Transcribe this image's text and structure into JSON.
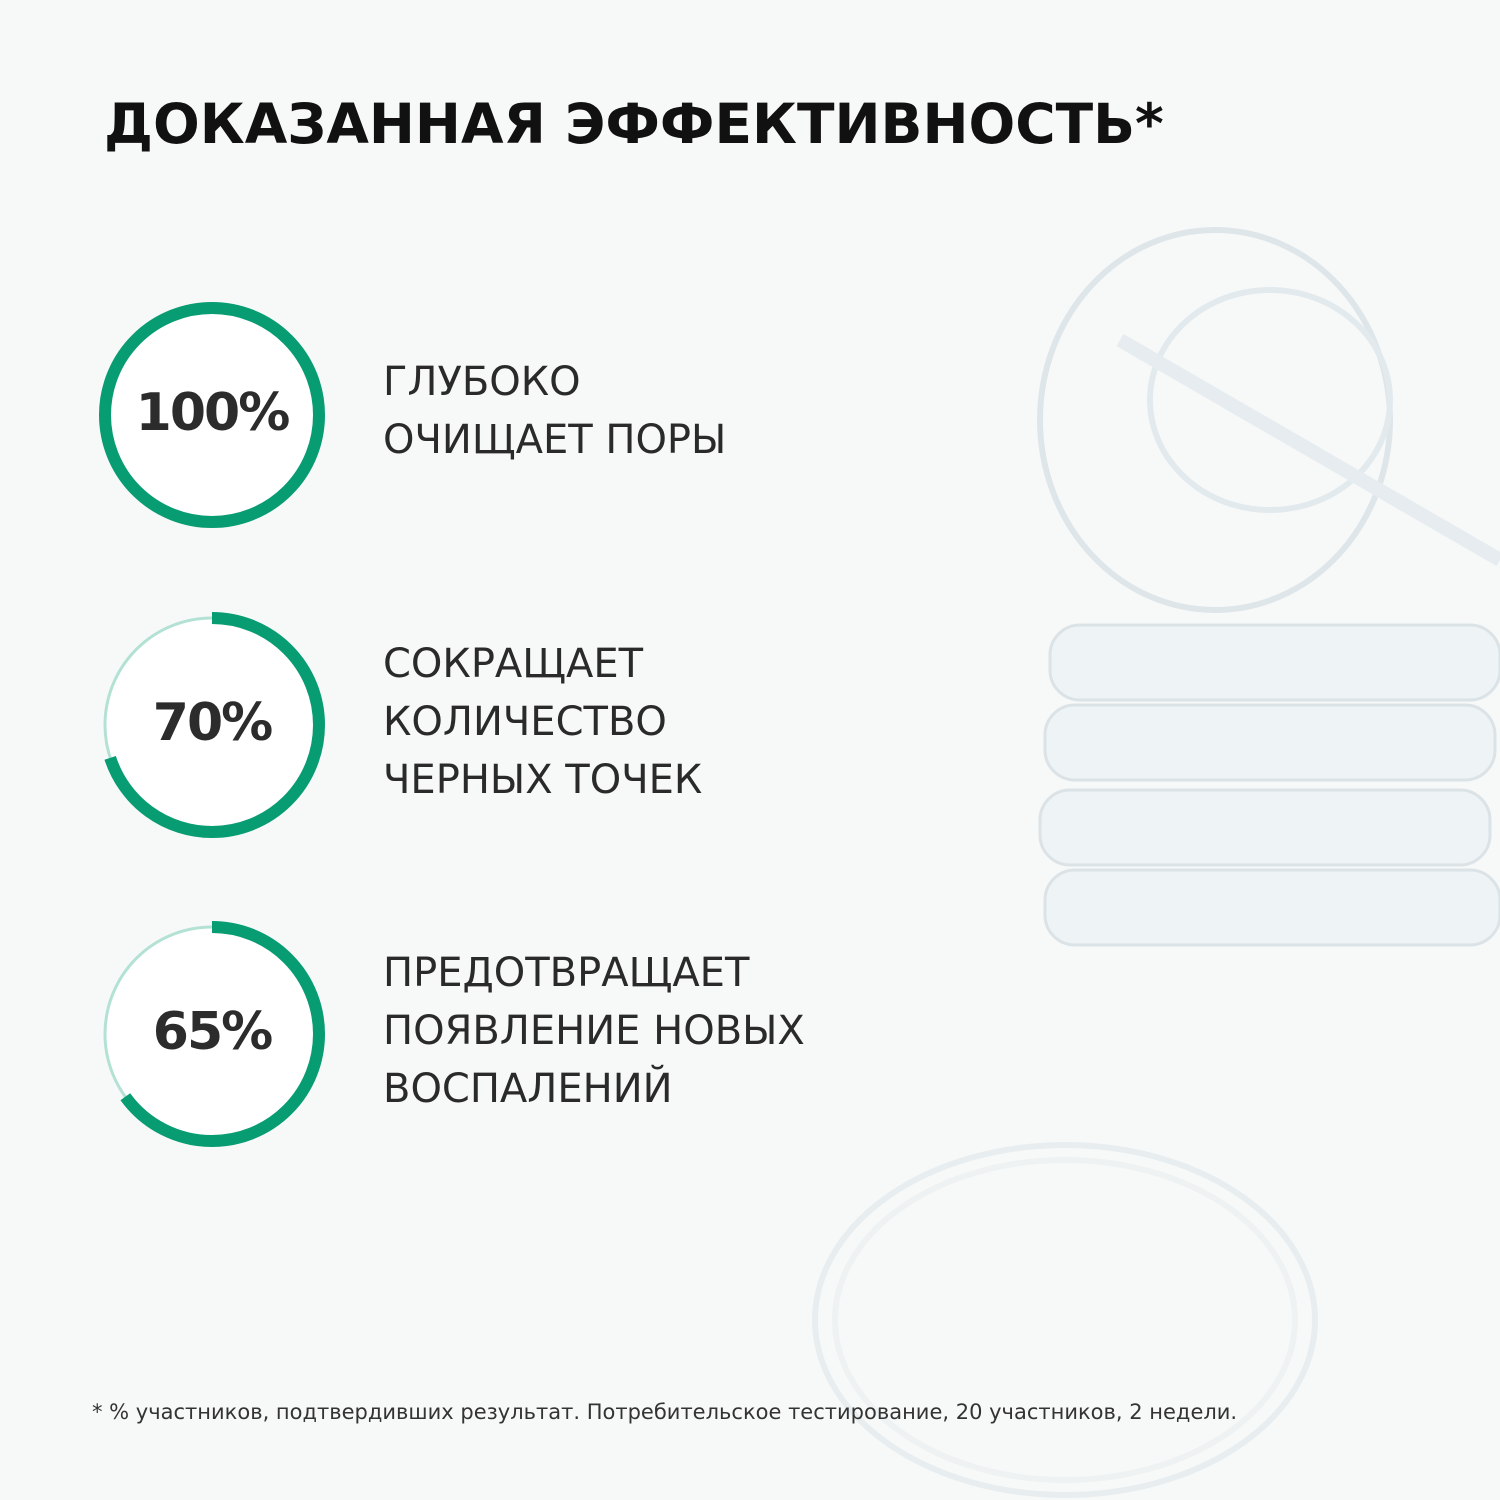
{
  "title": "ДОКАЗАННАЯ ЭФФЕКТИВНОСТЬ*",
  "accent_color": "#089c72",
  "track_color": "#b3e2d5",
  "stats": [
    {
      "value": "100%",
      "percent": 100,
      "lines": [
        "ГЛУБОКО",
        "ОЧИЩАЕТ ПОРЫ"
      ]
    },
    {
      "value": "70%",
      "percent": 70,
      "lines": [
        "СОКРАЩАЕТ",
        "КОЛИЧЕСТВО",
        "ЧЕРНЫХ ТОЧЕК"
      ]
    },
    {
      "value": "65%",
      "percent": 65,
      "lines": [
        "ПРЕДОТВРАЩАЕТ",
        "ПОЯВЛЕНИЕ НОВЫХ",
        "ВОСПАЛЕНИЙ"
      ]
    }
  ],
  "footnote": "* % участников, подтвердивших результат. Потребительское тестирование, 20 участников, 2 недели."
}
